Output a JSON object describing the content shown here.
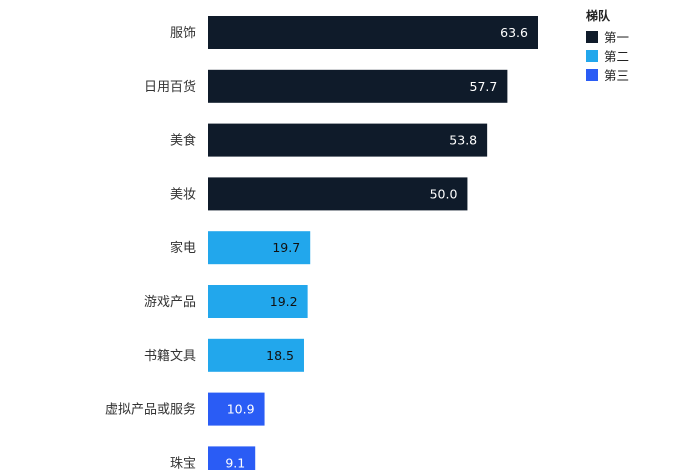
{
  "chart_data": {
    "type": "bar",
    "orientation": "horizontal",
    "title": "",
    "xlabel": "",
    "ylabel": "",
    "xlim": [
      0,
      70
    ],
    "grid": false,
    "legend_title": "梯队",
    "legend_position": "top-right",
    "tiers": [
      {
        "name": "第一",
        "color": "#0f1b2a",
        "label_color": "#ffffff"
      },
      {
        "name": "第二",
        "color": "#22a7ec",
        "label_color": "#111111"
      },
      {
        "name": "第三",
        "color": "#2a5cf5",
        "label_color": "#ffffff"
      }
    ],
    "categories": [
      "服饰",
      "日用百货",
      "美食",
      "美妆",
      "家电",
      "游戏产品",
      "书籍文具",
      "虚拟产品或服务",
      "珠宝"
    ],
    "values": [
      63.6,
      57.7,
      53.8,
      50.0,
      19.7,
      19.2,
      18.5,
      10.9,
      9.1
    ],
    "value_labels": [
      "63.6",
      "57.7",
      "53.8",
      "50.0",
      "19.7",
      "19.2",
      "18.5",
      "10.9",
      "9.1"
    ],
    "tier_of_bar": [
      "第一",
      "第一",
      "第一",
      "第一",
      "第二",
      "第二",
      "第二",
      "第三",
      "第三"
    ]
  }
}
